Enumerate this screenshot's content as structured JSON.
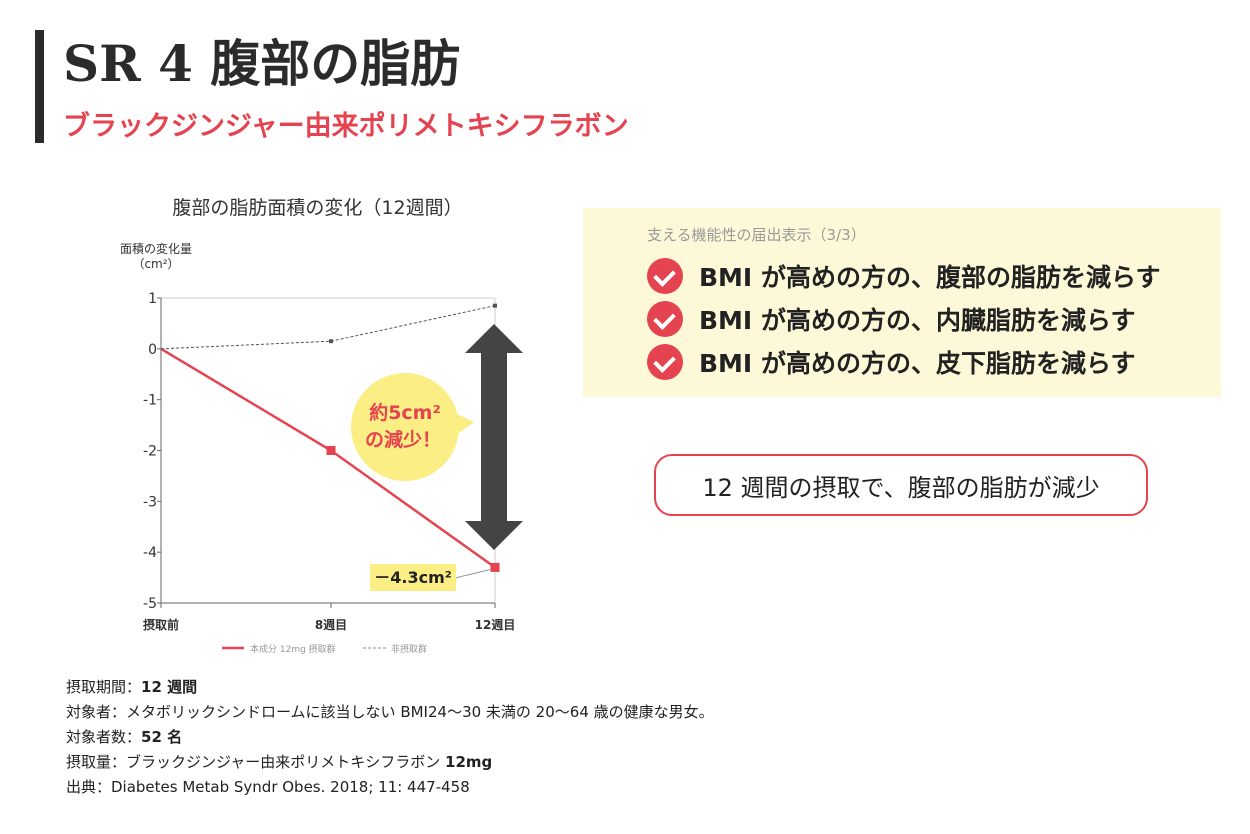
{
  "header": {
    "title": "SR 4  腹部の脂肪",
    "subtitle": "ブラックジンジャー由来ポリメトキシフラボン"
  },
  "chart_data": {
    "type": "line",
    "title": "腹部の脂肪面積の変化（12週間）",
    "ylabel": "面積の変化量",
    "yunit": "（cm²）",
    "categories": [
      "摂取前",
      "8週目",
      "12週目"
    ],
    "ylim": [
      -5,
      1
    ],
    "yticks": [
      "1",
      "0",
      "-1",
      "-2",
      "-3",
      "-4",
      "-5"
    ],
    "series": [
      {
        "name": "本成分 12mg 摂取群",
        "values": [
          0,
          -2.0,
          -4.3
        ],
        "color": "#e5434f",
        "style": "solid"
      },
      {
        "name": "非摂取群",
        "values": [
          0,
          0.15,
          0.85
        ],
        "color": "#555555",
        "style": "dashed"
      }
    ],
    "annotations": {
      "value_label": "－4.3cm²",
      "badge_line1": "約5cm²",
      "badge_line2": "の減少！"
    },
    "grid": false,
    "legend_position": "bottom"
  },
  "claims": {
    "heading": "支える機能性の届出表示（3/3）",
    "items": [
      "BMI が高めの方の、腹部の脂肪を減らす",
      "BMI が高めの方の、内臓脂肪を減らす",
      "BMI が高めの方の、皮下脂肪を減らす"
    ]
  },
  "result": "12 週間の摂取で、腹部の脂肪が減少",
  "notes": {
    "period_label": "摂取期間：",
    "period_value": "12 週間",
    "subjects": "対象者：メタボリックシンドロームに該当しない BMI24〜30 未満の 20〜64 歳の健康な男女。",
    "count_label": "対象者数：",
    "count_value": "52 名",
    "dose_label": "摂取量：ブラックジンジャー由来ポリメトキシフラボン ",
    "dose_value": "12mg",
    "source": "出典：Diabetes Metab Syndr Obes. 2018; 11: 447-458"
  },
  "colors": {
    "accent": "#e5434f",
    "highlight": "#fdf9d8",
    "badge": "#fbee85",
    "arrow": "#444444"
  }
}
